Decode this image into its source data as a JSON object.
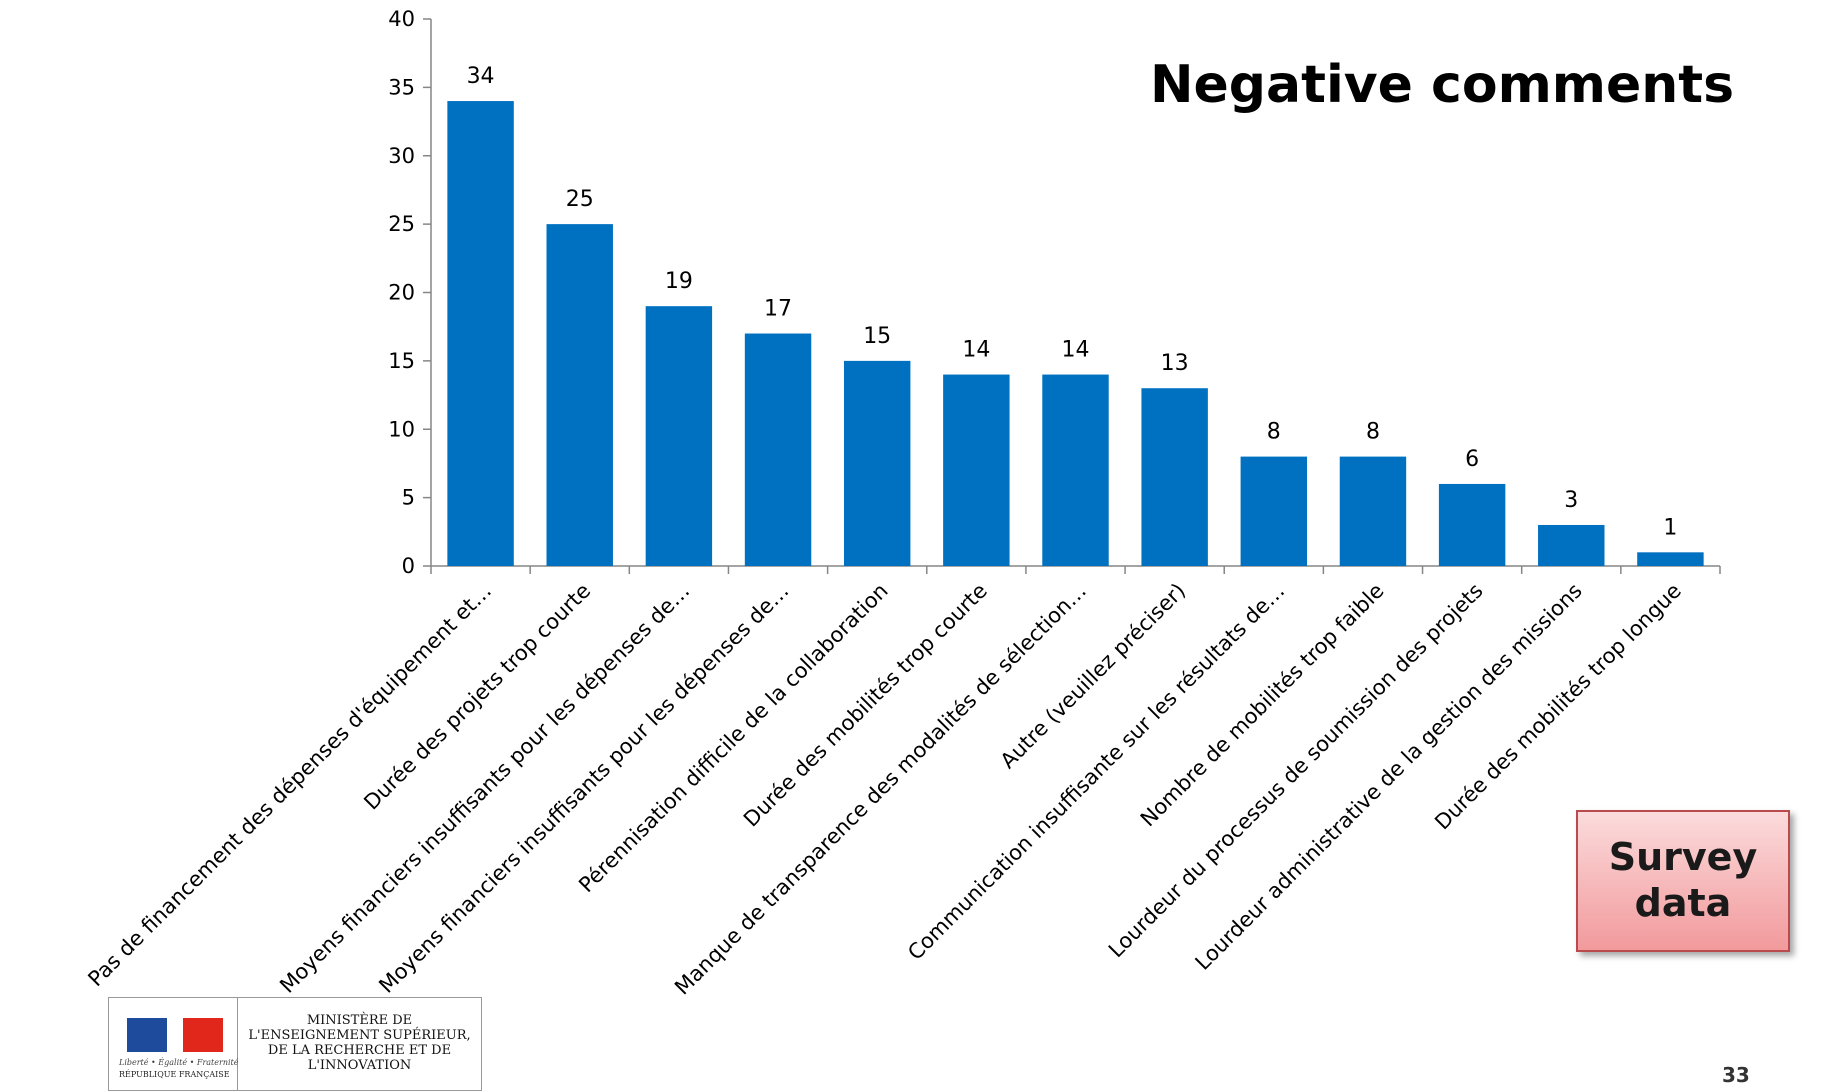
{
  "chart_data": {
    "type": "bar",
    "title": "Negative comments",
    "categories": [
      "Pas de financement des dépenses d'équipement et…",
      "Durée des projets trop courte",
      "Moyens financiers insuffisants pour les dépenses de…",
      "Moyens financiers insuffisants pour les dépenses de…",
      "Pérennisation difficile de la collaboration",
      "Durée des mobilités trop courte",
      "Manque de transparence des modalités de sélection…",
      "Autre (veuillez préciser)",
      "Communication insuffisante sur les résultats de…",
      "Nombre de mobilités trop faible",
      "Lourdeur du processus de soumission des projets",
      "Lourdeur administrative de la gestion des missions",
      "Durée des mobilités trop longue"
    ],
    "values": [
      34,
      25,
      19,
      17,
      15,
      14,
      14,
      13,
      8,
      8,
      6,
      3,
      1
    ],
    "ylim": [
      0,
      40
    ],
    "yticks": [
      0,
      5,
      10,
      15,
      20,
      25,
      30,
      35,
      40
    ],
    "data_labels": true,
    "grid": false,
    "bar_color": "#0070c0"
  },
  "badge": {
    "line1": "Survey",
    "line2": "data"
  },
  "page_number": "33",
  "logo": {
    "motto": "Liberté • Égalité • Fraternité",
    "republic": "RÉPUBLIQUE FRANÇAISE",
    "ministry": "MINISTÈRE DE L'ENSEIGNEMENT SUPÉRIEUR, DE LA RECHERCHE ET DE L'INNOVATION"
  }
}
